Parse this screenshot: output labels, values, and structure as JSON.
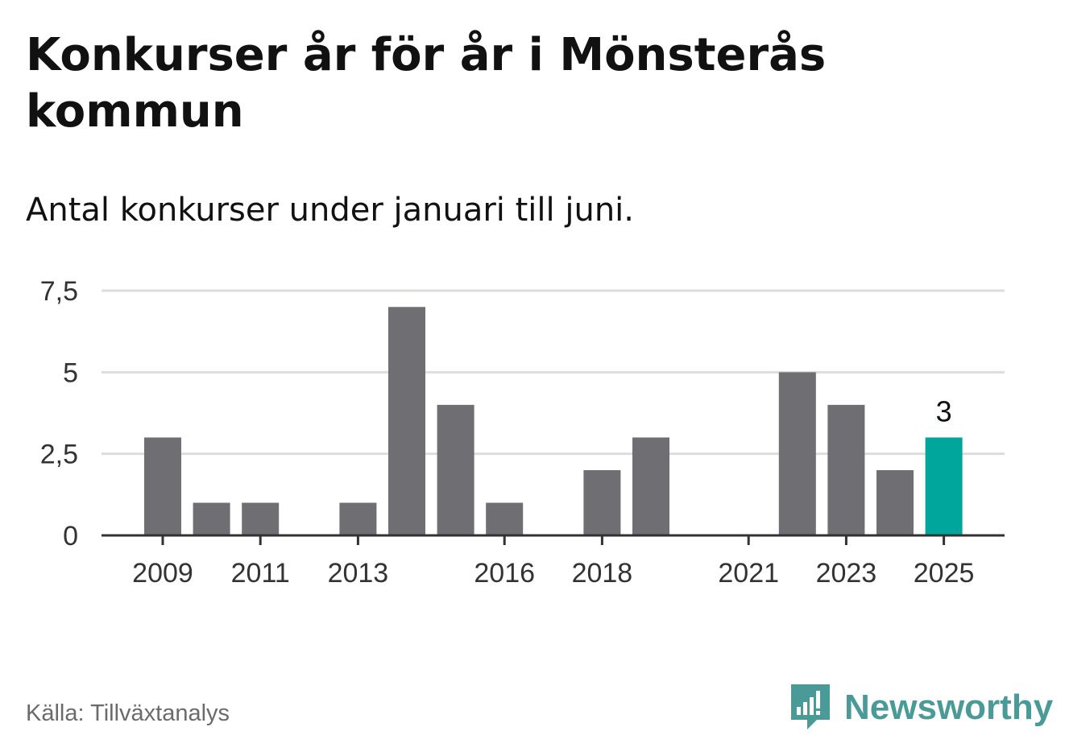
{
  "header": {
    "title": "Konkurser år för år i Mönsterås kommun",
    "subtitle": "Antal konkurser under januari till juni."
  },
  "footer": {
    "source": "Källa: Tillväxtanalys",
    "brand": "Newsworthy",
    "brand_icon": "newsworthy-logo-icon"
  },
  "colors": {
    "bar": "#6f6e73",
    "highlight": "#00a59b",
    "grid": "#dddddd",
    "axis": "#333333",
    "brand": "#4a9a98"
  },
  "chart_data": {
    "type": "bar",
    "title": "Konkurser år för år i Mönsterås kommun",
    "subtitle": "Antal konkurser under januari till juni.",
    "categories": [
      "2009",
      "2010",
      "2011",
      "2012",
      "2013",
      "2014",
      "2015",
      "2016",
      "2017",
      "2018",
      "2019",
      "2020",
      "2021",
      "2022",
      "2023",
      "2024",
      "2025"
    ],
    "values": [
      3,
      1,
      1,
      0,
      1,
      7,
      4,
      1,
      0,
      2,
      3,
      0,
      0,
      5,
      4,
      2,
      3
    ],
    "x_tick_labels": [
      "2009",
      "2011",
      "2013",
      "2016",
      "2018",
      "2021",
      "2023",
      "2025"
    ],
    "y_ticks": [
      0,
      2.5,
      5,
      7.5
    ],
    "y_tick_labels": [
      "0",
      "2,5",
      "5",
      "7,5"
    ],
    "ylim": [
      0,
      7.5
    ],
    "grid": true,
    "highlight_category": "2025",
    "data_labels": [
      {
        "category": "2025",
        "text": "3"
      }
    ],
    "xlabel": "",
    "ylabel": ""
  }
}
